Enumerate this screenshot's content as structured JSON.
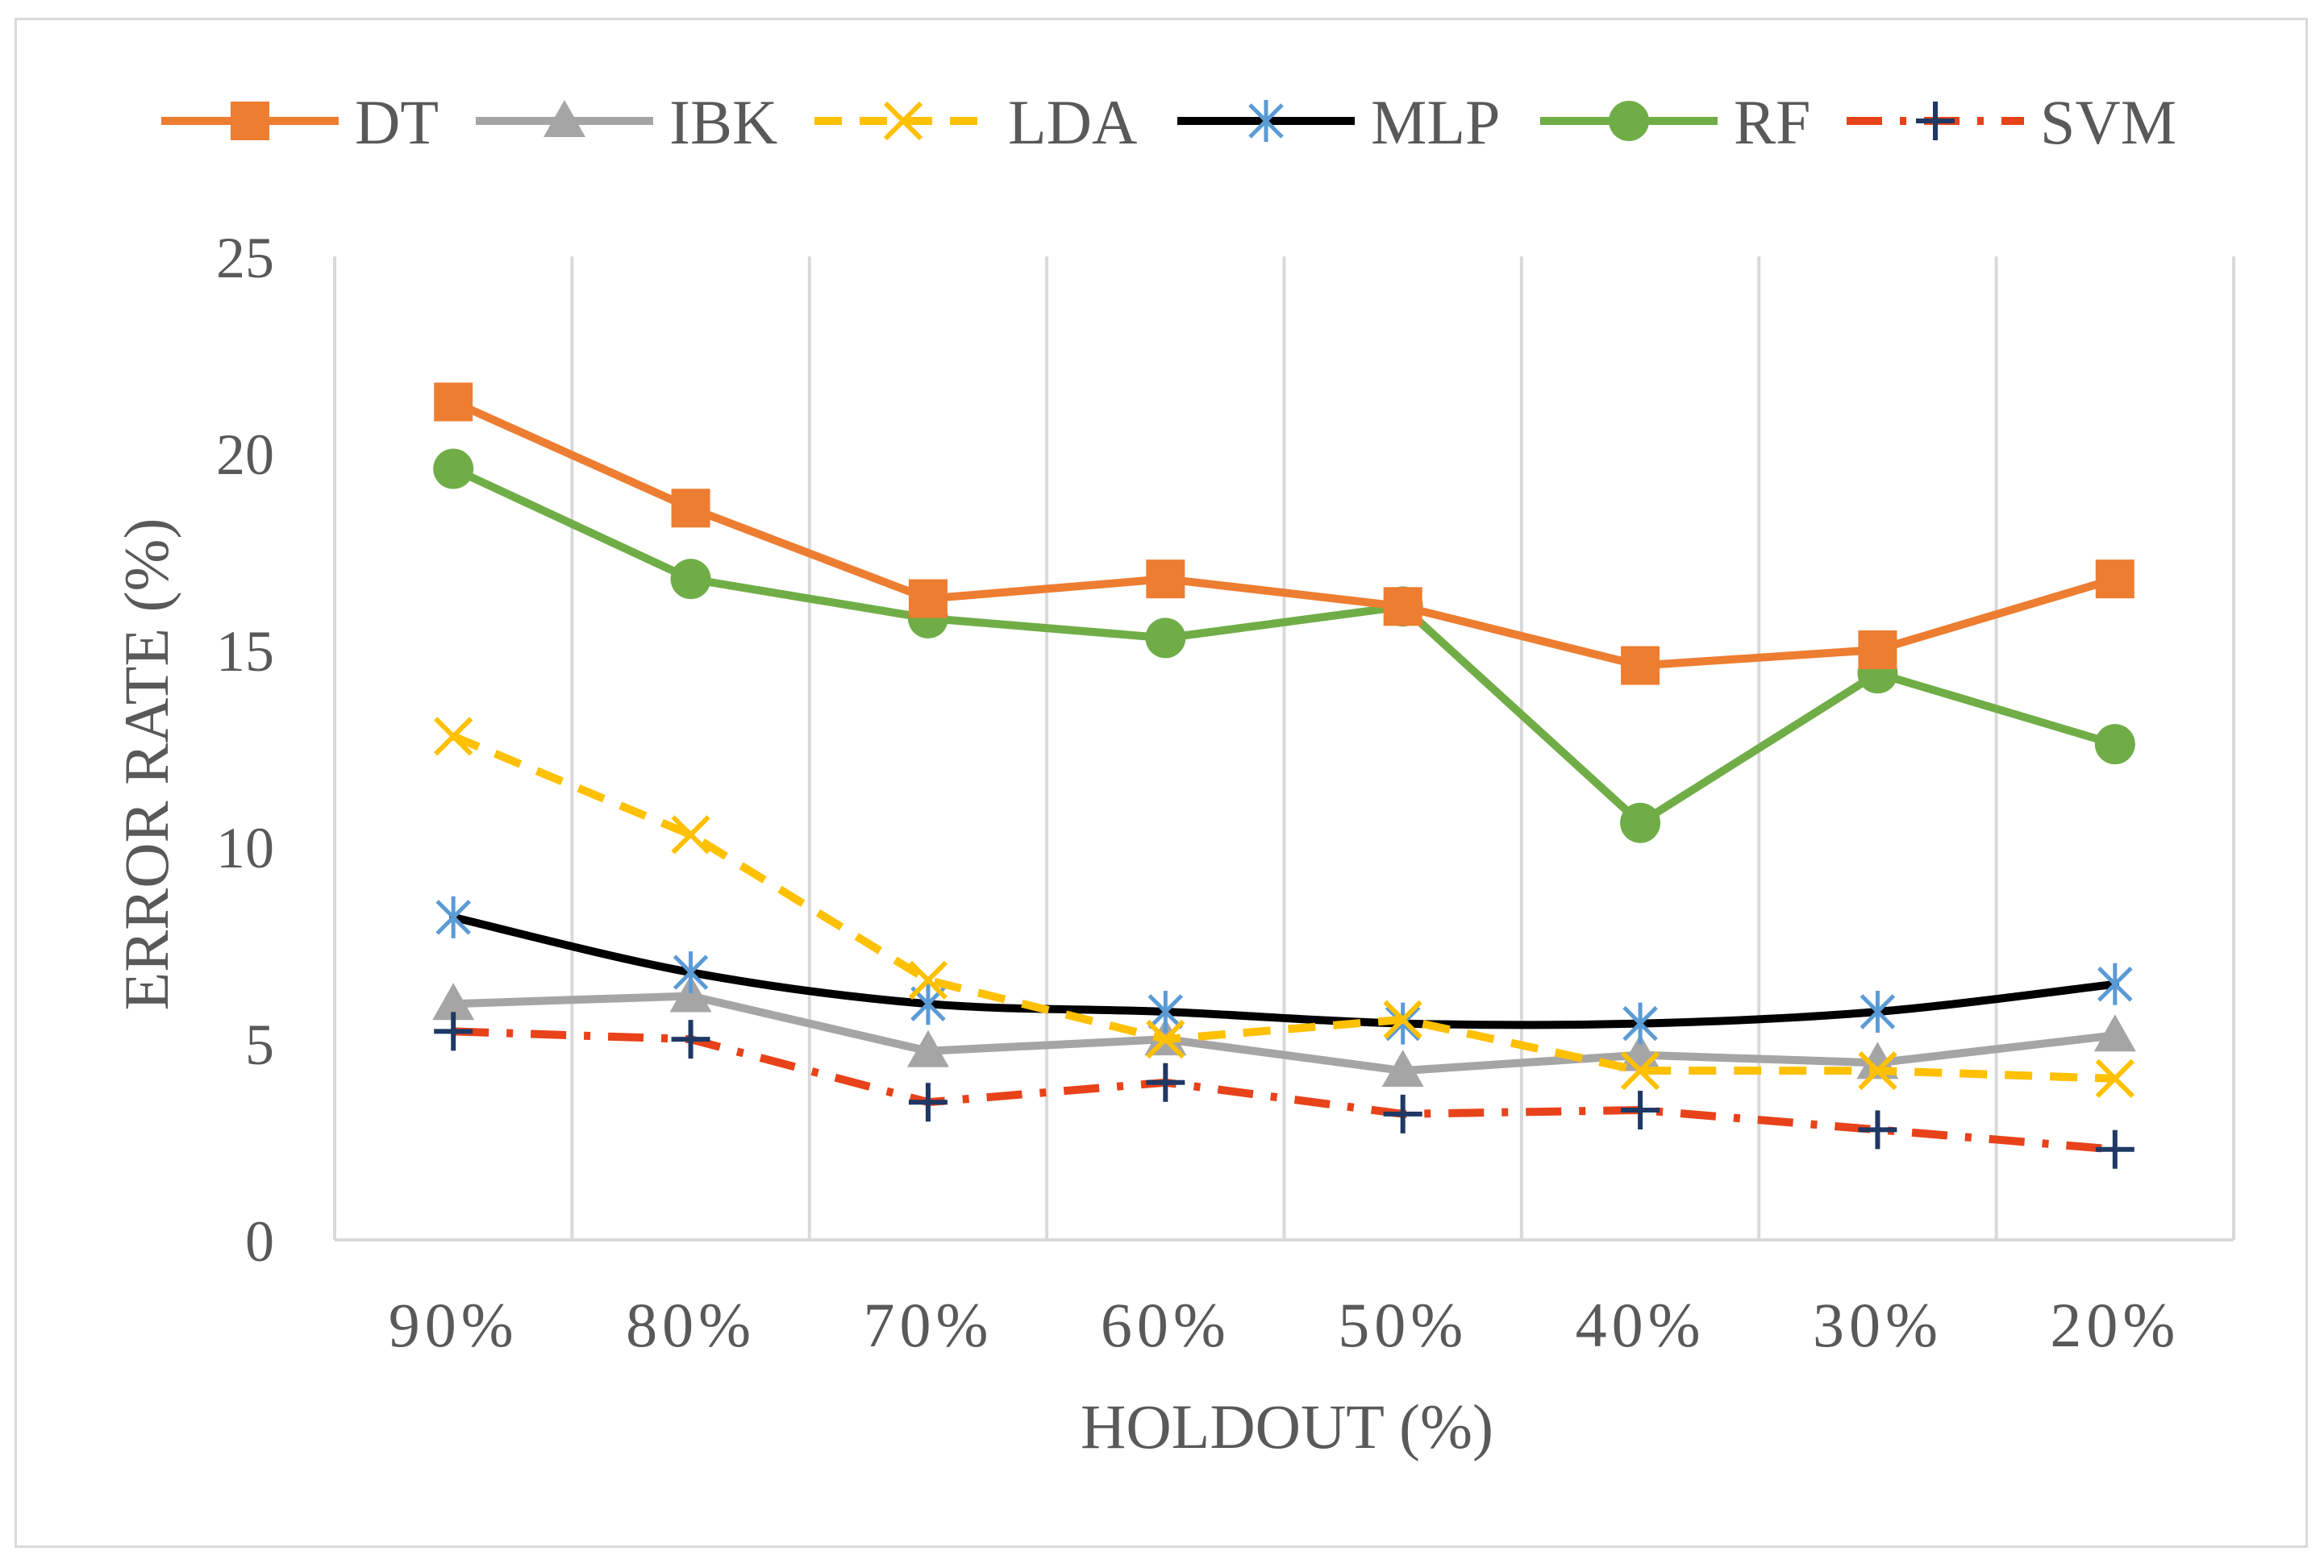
{
  "chart_data": {
    "type": "line",
    "title": "",
    "xlabel": "HOLDOUT (%)",
    "ylabel": "ERROR RATE (%)",
    "categories": [
      "90%",
      "80%",
      "70%",
      "60%",
      "50%",
      "40%",
      "30%",
      "20%"
    ],
    "ylim": [
      0,
      25
    ],
    "yticks": [
      "0",
      "5",
      "10",
      "15",
      "20",
      "25"
    ],
    "grid": "vertical",
    "legend_position": "top",
    "series": [
      {
        "name": "DT",
        "values": [
          21.3,
          18.6,
          16.3,
          16.8,
          16.1,
          14.6,
          15.0,
          16.8
        ],
        "color": "#ED7D31",
        "dash": "solid",
        "marker": "square",
        "smooth": false
      },
      {
        "name": "IBK",
        "values": [
          6.0,
          6.2,
          4.8,
          5.1,
          4.3,
          4.7,
          4.5,
          5.2
        ],
        "color": "#A5A5A5",
        "dash": "solid",
        "marker": "triangle",
        "smooth": false
      },
      {
        "name": "LDA",
        "values": [
          12.8,
          10.3,
          6.6,
          5.1,
          5.6,
          4.3,
          4.3,
          4.1
        ],
        "color": "#FFC000",
        "dash": "dashed",
        "marker": "x",
        "smooth": false
      },
      {
        "name": "MLP",
        "values": [
          8.2,
          6.8,
          6.0,
          5.8,
          5.5,
          5.5,
          5.8,
          6.5
        ],
        "color": "#000000",
        "dash": "solid",
        "marker": "asterisk",
        "smooth": true,
        "marker_color": "#5B9BD5"
      },
      {
        "name": "RF",
        "values": [
          19.6,
          16.8,
          15.8,
          15.3,
          16.1,
          10.6,
          14.4,
          12.6
        ],
        "color": "#70AD47",
        "dash": "solid",
        "marker": "circle",
        "smooth": false
      },
      {
        "name": "SVM",
        "values": [
          5.3,
          5.1,
          3.5,
          4.0,
          3.2,
          3.3,
          2.8,
          2.3
        ],
        "color": "#E8421A",
        "dash": "dashdot",
        "marker": "plus",
        "smooth": false,
        "marker_color": "#1F3864"
      }
    ]
  }
}
